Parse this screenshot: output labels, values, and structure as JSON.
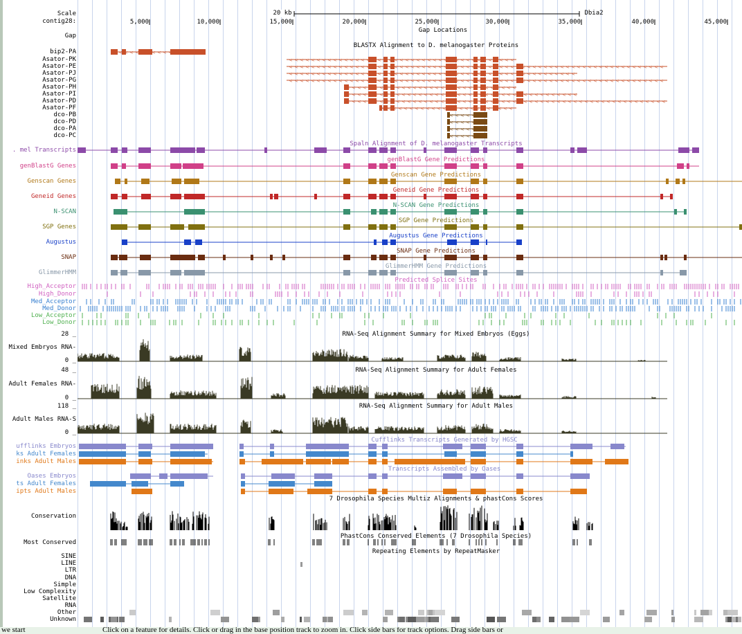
{
  "browser": {
    "scale_label": "Scale",
    "scale_value": "20 kb",
    "assembly": "Dbia2",
    "contig_label": "contig28:",
    "positions": [
      "5,000",
      "10,000",
      "15,000",
      "20,000",
      "25,000",
      "30,000",
      "35,000",
      "40,000",
      "45,000"
    ]
  },
  "tracks": [
    {
      "label": "Gap",
      "title": "Gap Locations"
    },
    {
      "title": "BLASTX Alignment to D. melanogaster Proteins",
      "rows": [
        "bip2-PA",
        "Asator-PK",
        "Asator-PE",
        "Asator-PJ",
        "Asator-PG",
        "Asator-PH",
        "Asator-PI",
        "Asator-PD",
        "Asator-PF",
        "dco-PB",
        "dco-PD",
        "dco-PA",
        "dco-PC"
      ]
    },
    {
      "label": ". mel Transcripts",
      "title": "Spaln Alignment of D. melanogaster Transcripts"
    },
    {
      "label": "genBlastG Genes",
      "title": "genBlastG Gene Predictions"
    },
    {
      "label": "Genscan Genes",
      "title": "Genscan Gene Predictions"
    },
    {
      "label": "Geneid Genes",
      "title": "Geneid Gene Predictions"
    },
    {
      "label": "N-SCAN",
      "title": "N-SCAN Gene Predictions"
    },
    {
      "label": "SGP Genes",
      "title": "SGP Gene Predictions"
    },
    {
      "label": "Augustus",
      "title": "Augustus Gene Predictions"
    },
    {
      "label": "SNAP",
      "title": "SNAP Gene Predictions"
    },
    {
      "label": "GlimmerHMM",
      "title": "GlimmerHMM Gene Predictions"
    },
    {
      "title": "Predicted Splice Sites",
      "rows": [
        "High_Acceptor",
        "High_Donor",
        "Med_Acceptor",
        "Med_Donor",
        "Low_Acceptor",
        "Low_Donor"
      ]
    },
    {
      "label": "Mixed Embryos RNA-",
      "title": "RNA-Seq Alignment Summary for Mixed Embryos (Eggs)",
      "max": "28 _",
      "min": "0 _"
    },
    {
      "label": "Adult Females RNA-",
      "title": "RNA-Seq Alignment Summary for Adult Females",
      "max": "48 _",
      "min": "0 _"
    },
    {
      "label": "Adult Males RNA-S",
      "title": "RNA-Seq Alignment Summary for Adult Males",
      "max": "118 _",
      "min": "0 _"
    },
    {
      "title": "Cufflinks Transcripts Generated by HGSC",
      "rows": [
        "ufflinks Embryos",
        "ks Adult Females",
        "inks Adult Males"
      ]
    },
    {
      "title": "Transcripts Assembled by Oases",
      "rows": [
        "Oases Embryos",
        "ts Adult Females",
        "ipts Adult Males"
      ]
    },
    {
      "label": "Conservation",
      "title": "7 Drosophila Species Multiz Alignments & phastCons Scores"
    },
    {
      "label": "Most Conserved",
      "title": "PhastCons Conserved Elements (7 Drosophila Species)"
    },
    {
      "title": "Repeating Elements by RepeatMasker",
      "rows": [
        "SINE",
        "LINE",
        "LTR",
        "DNA",
        "Simple",
        "Low Complexity",
        "Satellite",
        "RNA",
        "Other",
        "Unknown"
      ]
    }
  ],
  "footer": {
    "left_text": "we start",
    "help_text": "Click on a feature for details. Click or drag in the base position track to zoom in. Click side bars for track options. Drag side bars or"
  },
  "colors": {
    "blastx_asator": "#c8502a",
    "blastx_dco": "#7a4a14",
    "mel_transcripts": "#8c4aa8",
    "genblastg": "#d04088",
    "genscan": "#b07818",
    "geneid": "#c02828",
    "nscan": "#3a9070",
    "sgp": "#807010",
    "augustus": "#1840c8",
    "snap": "#6a2c10",
    "glimmer": "#8898a8",
    "high_splice": "#d060c0",
    "med_splice": "#3880d0",
    "low_splice": "#50b050",
    "rnaseq": "#3a3a24",
    "cuff_embryos": "#8888cc",
    "cuff_females": "#4488cc",
    "cuff_males": "#e07818",
    "conservation": "#000000",
    "repeat": "#888888"
  }
}
